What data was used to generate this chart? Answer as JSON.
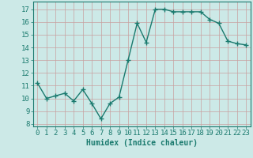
{
  "x": [
    0,
    1,
    2,
    3,
    4,
    5,
    6,
    7,
    8,
    9,
    10,
    11,
    12,
    13,
    14,
    15,
    16,
    17,
    18,
    19,
    20,
    21,
    22,
    23
  ],
  "y": [
    11.2,
    10.0,
    10.2,
    10.4,
    9.8,
    10.7,
    9.6,
    8.4,
    9.6,
    10.1,
    13.0,
    15.9,
    14.4,
    17.0,
    17.0,
    16.8,
    16.8,
    16.8,
    16.8,
    16.2,
    15.9,
    14.5,
    14.3,
    14.2
  ],
  "line_color": "#1a7a6e",
  "marker": "+",
  "marker_size": 4,
  "bg_color": "#cce9e7",
  "grid_color": "#b0d4d0",
  "tick_color": "#1a7a6e",
  "xlabel": "Humidex (Indice chaleur)",
  "xlim": [
    -0.5,
    23.5
  ],
  "ylim": [
    7.8,
    17.6
  ],
  "yticks": [
    8,
    9,
    10,
    11,
    12,
    13,
    14,
    15,
    16,
    17
  ],
  "xticks": [
    0,
    1,
    2,
    3,
    4,
    5,
    6,
    7,
    8,
    9,
    10,
    11,
    12,
    13,
    14,
    15,
    16,
    17,
    18,
    19,
    20,
    21,
    22,
    23
  ],
  "xlabel_fontsize": 7,
  "tick_fontsize": 6.5,
  "line_width": 1.0
}
